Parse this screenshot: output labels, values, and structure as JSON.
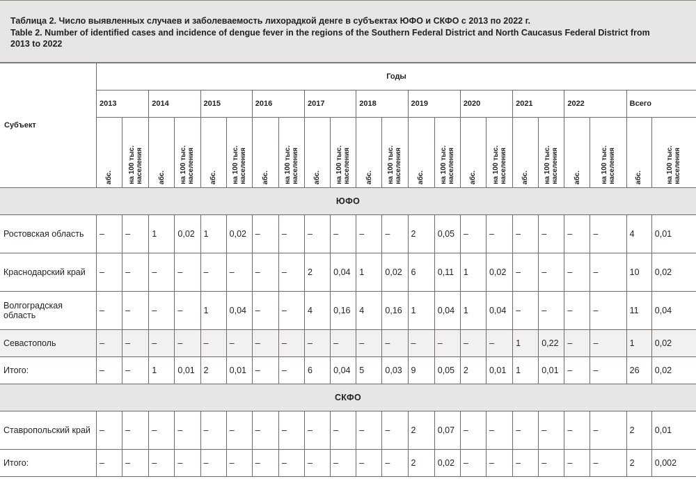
{
  "caption": {
    "line_ru": "Таблица 2. Число выявленных случаев и заболеваемость лихорадкой денге в субъектах ЮФО и СКФО с 2013 по 2022 г.",
    "line_en_1": "Table 2. Number of identified cases and incidence of dengue fever in the regions of the Southern Federal District and North Caucasus Federal District from",
    "line_en_2": "2013 to 2022"
  },
  "header": {
    "subject": "Субъект",
    "years_label": "Годы",
    "years": [
      "2013",
      "2014",
      "2015",
      "2016",
      "2017",
      "2018",
      "2019",
      "2020",
      "2021",
      "2022",
      "Всего"
    ],
    "abs": "абс.",
    "per100k_line1": "на 100 тыс.",
    "per100k_line2": "населения"
  },
  "sections": [
    {
      "title": "ЮФО",
      "rows": [
        {
          "name": [
            "Ростовская область"
          ],
          "cells": [
            "–",
            "–",
            "1",
            "0,02",
            "1",
            "0,02",
            "–",
            "–",
            "–",
            "–",
            "–",
            "–",
            "2",
            "0,05",
            "–",
            "–",
            "–",
            "–",
            "–",
            "–",
            "4",
            "0,01"
          ]
        },
        {
          "name": [
            "Краснодарский край"
          ],
          "cells": [
            "–",
            "–",
            "–",
            "–",
            "–",
            "–",
            "–",
            "–",
            "2",
            "0,04",
            "1",
            "0,02",
            "6",
            "0,11",
            "1",
            "0,02",
            "–",
            "–",
            "–",
            "–",
            "10",
            "0,02"
          ]
        },
        {
          "name": [
            "Волгоградская",
            "область"
          ],
          "cells": [
            "–",
            "–",
            "–",
            "–",
            "1",
            "0,04",
            "–",
            "–",
            "4",
            "0,16",
            "4",
            "0,16",
            "1",
            "0,04",
            "1",
            "0,04",
            "–",
            "–",
            "–",
            "–",
            "11",
            "0,04"
          ]
        },
        {
          "name": [
            "Севастополь"
          ],
          "cells": [
            "–",
            "–",
            "–",
            "–",
            "–",
            "–",
            "–",
            "–",
            "–",
            "–",
            "–",
            "–",
            "–",
            "–",
            "–",
            "–",
            "1",
            "0,22",
            "–",
            "–",
            "1",
            "0,02"
          ]
        },
        {
          "name": [
            "Итого:"
          ],
          "cells": [
            "–",
            "–",
            "1",
            "0,01",
            "2",
            "0,01",
            "–",
            "–",
            "6",
            "0,04",
            "5",
            "0,03",
            "9",
            "0,05",
            "2",
            "0,01",
            "1",
            "0,01",
            "–",
            "–",
            "26",
            "0,02"
          ]
        }
      ]
    },
    {
      "title": "СКФО",
      "rows": [
        {
          "name": [
            "Ставропольский край"
          ],
          "cells": [
            "–",
            "–",
            "–",
            "–",
            "–",
            "–",
            "–",
            "–",
            "–",
            "–",
            "–",
            "–",
            "2",
            "0,07",
            "–",
            "–",
            "–",
            "–",
            "–",
            "–",
            "2",
            "0,01"
          ]
        },
        {
          "name": [
            "Итого:"
          ],
          "cells": [
            "–",
            "–",
            "–",
            "–",
            "–",
            "–",
            "–",
            "–",
            "–",
            "–",
            "–",
            "–",
            "2",
            "0,02",
            "–",
            "–",
            "–",
            "–",
            "–",
            "–",
            "2",
            "0,002"
          ]
        }
      ]
    }
  ],
  "colors": {
    "header_bg": "#e7e6e5",
    "shaded_row_bg": "#f2f1f0",
    "border": "#6e6b68",
    "text": "#231f20"
  }
}
